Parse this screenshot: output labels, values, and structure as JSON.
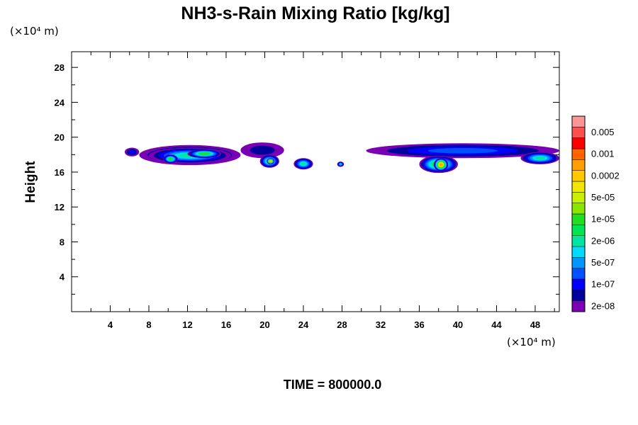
{
  "chart_data": {
    "type": "heatmap",
    "title": "NH3-s-Rain Mixing Ratio [kg/kg]",
    "xlabel": "",
    "ylabel": "Height",
    "x_unit_label": "(×10⁴ m)",
    "y_unit_label": "(×10⁴ m)",
    "xlim": [
      0,
      50.5
    ],
    "ylim": [
      0,
      29.8
    ],
    "x_ticks": [
      4,
      8,
      12,
      16,
      20,
      24,
      28,
      32,
      36,
      40,
      44,
      48
    ],
    "y_ticks": [
      4,
      8,
      12,
      16,
      20,
      24,
      28
    ],
    "time_label": "TIME = 800000.0",
    "colorbar": {
      "levels": [
        {
          "color": "#7a00b4",
          "label": "2e-08"
        },
        {
          "color": "#00009a",
          "label": ""
        },
        {
          "color": "#0000ff",
          "label": "1e-07"
        },
        {
          "color": "#0050ff",
          "label": ""
        },
        {
          "color": "#0096ff",
          "label": "5e-07"
        },
        {
          "color": "#00dcff",
          "label": ""
        },
        {
          "color": "#00e6a0",
          "label": "2e-06"
        },
        {
          "color": "#00e650",
          "label": ""
        },
        {
          "color": "#22dd22",
          "label": "1e-05"
        },
        {
          "color": "#88e600",
          "label": ""
        },
        {
          "color": "#c8f000",
          "label": "5e-05"
        },
        {
          "color": "#f0e600",
          "label": ""
        },
        {
          "color": "#ffc800",
          "label": "0.0002"
        },
        {
          "color": "#ffa000",
          "label": ""
        },
        {
          "color": "#ff6400",
          "label": "0.001"
        },
        {
          "color": "#ff0000",
          "label": ""
        },
        {
          "color": "#ff5050",
          "label": "0.005"
        },
        {
          "color": "#ff9696",
          "label": ""
        }
      ]
    },
    "regions": [
      {
        "x0": 7.0,
        "x1": 17.5,
        "y0": 16.8,
        "y1": 19.1,
        "level": 4
      },
      {
        "x0": 8.0,
        "x1": 16.5,
        "y0": 17.0,
        "y1": 18.8,
        "level": 6
      },
      {
        "x0": 9.5,
        "x1": 11.0,
        "y0": 17.0,
        "y1": 18.0,
        "level": 8
      },
      {
        "x0": 12.0,
        "x1": 15.5,
        "y0": 17.6,
        "y1": 18.6,
        "level": 8
      },
      {
        "x0": 17.5,
        "x1": 22.0,
        "y0": 17.6,
        "y1": 19.4,
        "level": 1
      },
      {
        "x0": 19.5,
        "x1": 21.5,
        "y0": 16.5,
        "y1": 18.0,
        "level": 7
      },
      {
        "x0": 20.2,
        "x1": 21.0,
        "y0": 16.9,
        "y1": 17.6,
        "level": 13
      },
      {
        "x0": 23.0,
        "x1": 25.0,
        "y0": 16.3,
        "y1": 17.6,
        "level": 6
      },
      {
        "x0": 5.5,
        "x1": 7.0,
        "y0": 17.8,
        "y1": 18.8,
        "level": 2
      },
      {
        "x0": 27.5,
        "x1": 28.2,
        "y0": 16.6,
        "y1": 17.2,
        "level": 5
      },
      {
        "x0": 30.5,
        "x1": 50.5,
        "y0": 17.6,
        "y1": 19.3,
        "level": 3
      },
      {
        "x0": 36.0,
        "x1": 40.0,
        "y0": 15.9,
        "y1": 17.9,
        "level": 8
      },
      {
        "x0": 37.5,
        "x1": 39.0,
        "y0": 16.1,
        "y1": 17.6,
        "level": 13
      },
      {
        "x0": 46.5,
        "x1": 50.5,
        "y0": 16.9,
        "y1": 18.3,
        "level": 6
      }
    ]
  }
}
